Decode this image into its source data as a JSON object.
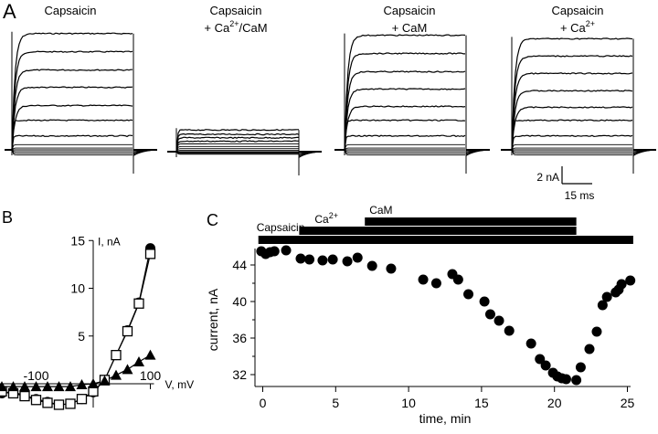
{
  "panels": {
    "A": {
      "label": "A",
      "traces": [
        {
          "title_line1": "Capsaicin",
          "title_line2": "",
          "amplitudes_nA": [
            13.4,
            11.3,
            9.2,
            7.2,
            5.1,
            3.4,
            1.6,
            0.6,
            0.2,
            0.0,
            -0.2,
            -0.4,
            -0.6
          ]
        },
        {
          "title_line1": "Capsaicin",
          "title_line2": "+ Ca",
          "title_sup": "2+",
          "title_suffix": "/CaM",
          "amplitudes_nA": [
            2.5,
            2.0,
            1.6,
            1.2,
            0.9,
            0.6,
            0.35,
            0.15,
            0.0,
            -0.1,
            -0.2,
            -0.3
          ]
        },
        {
          "title_line1": "Capsaicin",
          "title_line2": "+ CaM",
          "amplitudes_nA": [
            13.2,
            11.1,
            9.0,
            7.0,
            5.0,
            3.4,
            1.6,
            0.6,
            0.2,
            0.0,
            -0.2,
            -0.4,
            -0.6
          ]
        },
        {
          "title_line1": "Capsaicin",
          "title_line2": "+ Ca",
          "title_sup": "2+",
          "amplitudes_nA": [
            12.8,
            10.8,
            8.8,
            6.8,
            4.9,
            3.4,
            1.6,
            0.6,
            0.2,
            0.0,
            -0.2,
            -0.4,
            -0.6
          ]
        }
      ],
      "scale_bar": {
        "current_label": "2 nA",
        "time_label": "15 ms"
      }
    }
  },
  "chart_data": [
    {
      "panel": "B",
      "type": "scatter",
      "title": "",
      "xlabel": "V, mV",
      "ylabel": "I, nA",
      "xlim": [
        -160,
        100
      ],
      "ylim": [
        -2.5,
        15
      ],
      "x_ticks": [
        -100,
        100
      ],
      "y_ticks": [
        5,
        10,
        15
      ],
      "series": [
        {
          "name": "Capsaicin",
          "marker": "filled-circle",
          "x": [
            -160,
            -140,
            -120,
            -100,
            -80,
            -60,
            -40,
            -20,
            0,
            20,
            40,
            60,
            80,
            100
          ],
          "y": [
            -1.0,
            -0.9,
            -1.2,
            -1.6,
            -1.9,
            -2.2,
            -2.1,
            -1.6,
            -0.9,
            0.4,
            3.0,
            5.6,
            8.5,
            14.2
          ]
        },
        {
          "name": "Capsaicin + CaM",
          "marker": "open-square",
          "x": [
            -160,
            -140,
            -120,
            -100,
            -80,
            -60,
            -40,
            -20,
            0,
            20,
            40,
            60,
            80,
            100
          ],
          "y": [
            -0.8,
            -1.0,
            -1.3,
            -1.7,
            -2.0,
            -2.2,
            -2.1,
            -1.6,
            -0.8,
            0.4,
            3.0,
            5.5,
            8.4,
            13.6
          ]
        },
        {
          "name": "Capsaicin + Ca2+/CaM",
          "marker": "filled-triangle",
          "x": [
            -160,
            -140,
            -120,
            -100,
            -80,
            -60,
            -40,
            -20,
            0,
            20,
            40,
            60,
            80,
            100
          ],
          "y": [
            -0.3,
            -0.3,
            -0.3,
            -0.3,
            -0.3,
            -0.3,
            -0.3,
            -0.1,
            0.0,
            0.3,
            0.9,
            1.5,
            2.3,
            3.0
          ]
        }
      ]
    },
    {
      "panel": "C",
      "type": "scatter",
      "title": "",
      "xlabel": "time, min",
      "ylabel": "current, nA",
      "xlim": [
        -0.5,
        25.5
      ],
      "ylim": [
        30.7,
        45.5
      ],
      "x_ticks": [
        0,
        5,
        10,
        15,
        20,
        25
      ],
      "y_ticks": [
        32,
        36,
        40,
        44
      ],
      "grid": false,
      "application_bars": [
        {
          "label": "Capsaicin",
          "start_min": -0.3,
          "end_min": 25.4
        },
        {
          "label": "Ca",
          "label_sup": "2+",
          "start_min": 2.5,
          "end_min": 21.5
        },
        {
          "label": "CaM",
          "start_min": 7.0,
          "end_min": 21.5
        }
      ],
      "x": [
        -0.1,
        0.2,
        0.5,
        0.8,
        1.6,
        2.6,
        3.2,
        4.1,
        4.8,
        5.8,
        6.5,
        7.5,
        8.8,
        11.0,
        11.9,
        13.0,
        13.4,
        14.1,
        15.2,
        15.6,
        16.2,
        16.9,
        18.4,
        19.0,
        19.4,
        19.9,
        20.2,
        20.5,
        20.8,
        21.5,
        21.8,
        22.4,
        22.9,
        23.3,
        23.6,
        24.2,
        24.4,
        24.6,
        25.2
      ],
      "y": [
        45.5,
        45.2,
        45.4,
        45.5,
        45.6,
        44.7,
        44.6,
        44.5,
        44.6,
        44.4,
        44.8,
        43.9,
        43.6,
        42.4,
        42.0,
        43.0,
        42.4,
        40.8,
        40.0,
        38.6,
        37.9,
        36.8,
        35.4,
        33.7,
        33.0,
        32.2,
        31.8,
        31.6,
        31.5,
        31.4,
        32.8,
        34.8,
        36.7,
        39.6,
        40.5,
        41.0,
        41.3,
        41.9,
        42.3
      ]
    }
  ]
}
